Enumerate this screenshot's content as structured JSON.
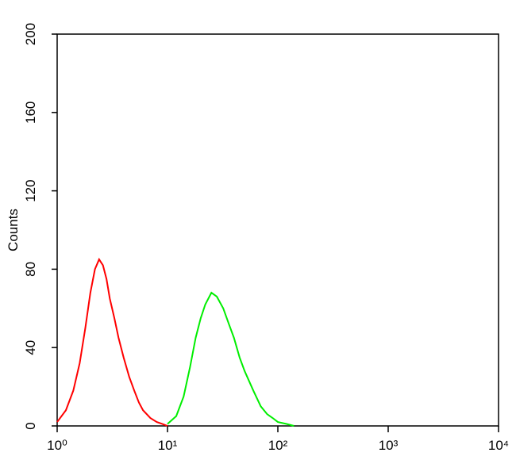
{
  "chart_data": {
    "type": "line",
    "y_label": "Counts",
    "xscale": "log",
    "xlim": [
      1,
      10000
    ],
    "xticks": [
      {
        "value": 1,
        "label": "10⁰"
      },
      {
        "value": 10,
        "label": "10¹"
      },
      {
        "value": 100,
        "label": "10²"
      },
      {
        "value": 1000,
        "label": "10³"
      },
      {
        "value": 10000,
        "label": "10⁴"
      }
    ],
    "ylim": [
      0,
      200
    ],
    "yticks": [
      0,
      40,
      80,
      120,
      160,
      200
    ],
    "series": [
      {
        "color": "#ff0000",
        "x": [
          1,
          1.2,
          1.4,
          1.6,
          1.8,
          2.0,
          2.2,
          2.4,
          2.6,
          2.8,
          3.0,
          3.3,
          3.6,
          4.0,
          4.5,
          5,
          5.5,
          6,
          7,
          8,
          9,
          10
        ],
        "values": [
          2,
          8,
          18,
          32,
          50,
          68,
          80,
          85,
          82,
          75,
          65,
          55,
          45,
          35,
          25,
          18,
          12,
          8,
          4,
          2,
          1,
          0
        ]
      },
      {
        "color": "#00ee00",
        "x": [
          10,
          12,
          14,
          16,
          18,
          20,
          22,
          25,
          28,
          32,
          36,
          40,
          45,
          50,
          60,
          70,
          80,
          90,
          100,
          120,
          140
        ],
        "values": [
          1,
          5,
          15,
          30,
          45,
          55,
          62,
          68,
          66,
          60,
          52,
          45,
          35,
          28,
          18,
          10,
          6,
          4,
          2,
          1,
          0
        ]
      }
    ]
  }
}
